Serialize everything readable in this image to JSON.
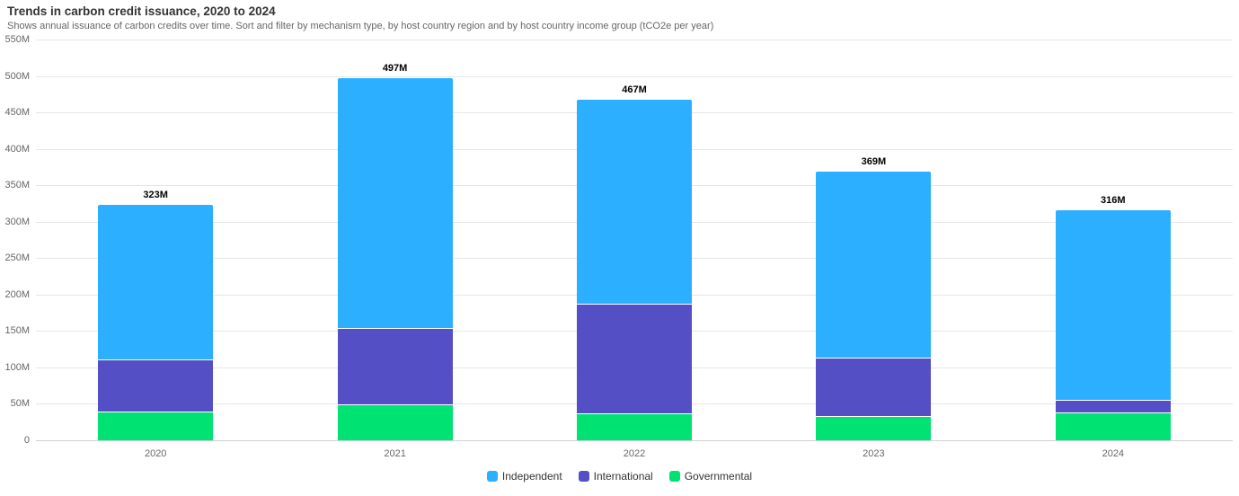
{
  "header": {
    "title": "Trends in carbon credit issuance, 2020 to 2024",
    "subtitle": "Shows annual issuance of carbon credits over time. Sort and filter by mechanism type, by host country region and by host country income group (tCO2e per year)"
  },
  "chart_data": {
    "type": "bar",
    "stacked": true,
    "title": "Trends in carbon credit issuance, 2020 to 2024",
    "subtitle": "Shows annual issuance of carbon credits over time. Sort and filter by mechanism type, by host country region and by host country income group (tCO2e per year)",
    "unit": "tCO2e per year",
    "categories": [
      "2020",
      "2021",
      "2022",
      "2023",
      "2024"
    ],
    "series": [
      {
        "name": "Independent",
        "color": "#2CAFFE",
        "values": [
          212,
          343,
          280,
          256,
          261
        ]
      },
      {
        "name": "International",
        "color": "#544FC5",
        "values": [
          71,
          105,
          150,
          80,
          17
        ]
      },
      {
        "name": "Governmental",
        "color": "#00E272",
        "values": [
          40,
          49,
          37,
          33,
          38
        ]
      }
    ],
    "stack_order_bottom_to_top": [
      "Governmental",
      "International",
      "Independent"
    ],
    "totals": [
      323,
      497,
      467,
      369,
      316
    ],
    "total_labels": [
      "323M",
      "497M",
      "467M",
      "369M",
      "316M"
    ],
    "ylim": [
      0,
      550
    ],
    "ytick_interval": 50,
    "ytick_labels": [
      "0",
      "50M",
      "100M",
      "150M",
      "200M",
      "250M",
      "300M",
      "350M",
      "400M",
      "450M",
      "500M",
      "550M"
    ],
    "grid": true,
    "legend_position": "bottom",
    "legend_entries": [
      "Independent",
      "International",
      "Governmental"
    ]
  },
  "colors": {
    "independent": "#2CAFFE",
    "international": "#544FC5",
    "governmental": "#00E272",
    "gridline": "#e6e6e6",
    "axis_label": "#666666",
    "title": "#333333",
    "data_label": "#000000"
  }
}
